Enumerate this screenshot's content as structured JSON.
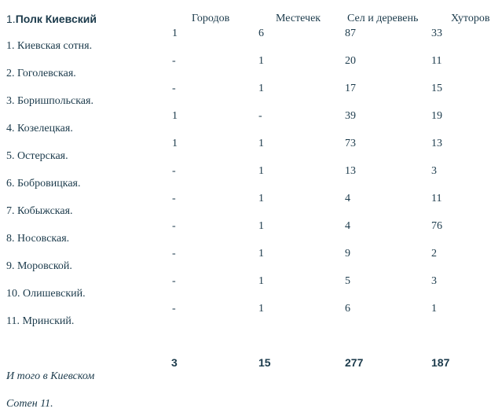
{
  "title": {
    "number": "1.",
    "text": "Полк Киевский"
  },
  "columns": [
    "Городов",
    "Местечек",
    "Сел и деревень",
    "Хуторов"
  ],
  "sotni": [
    "1. Киевская сотня.",
    "2. Гоголевская.",
    "3. Боришпольская.",
    "4. Козелецкая.",
    "5. Остерская.",
    "6. Бобровицкая.",
    "7. Кобыжская.",
    "8. Носовская.",
    "9. Моровской.",
    "10. Олишевский.",
    "11. Мринский."
  ],
  "rows": [
    [
      "1",
      "6",
      "87",
      "33"
    ],
    [
      "-",
      "1",
      "20",
      "11"
    ],
    [
      "-",
      "1",
      "17",
      "15"
    ],
    [
      "1",
      "-",
      "39",
      "19"
    ],
    [
      "1",
      "1",
      "73",
      "13"
    ],
    [
      "-",
      "1",
      "13",
      "3"
    ],
    [
      "-",
      "1",
      "4",
      "11"
    ],
    [
      "-",
      "1",
      "4",
      "76"
    ],
    [
      "-",
      "1",
      "9",
      "2"
    ],
    [
      "-",
      "1",
      "5",
      "3"
    ],
    [
      "-",
      "1",
      "6",
      "1"
    ]
  ],
  "totals": [
    "3",
    "15",
    "277",
    "187"
  ],
  "footer": {
    "line1": "И того в Киевском",
    "line2": "Сотен 11."
  }
}
